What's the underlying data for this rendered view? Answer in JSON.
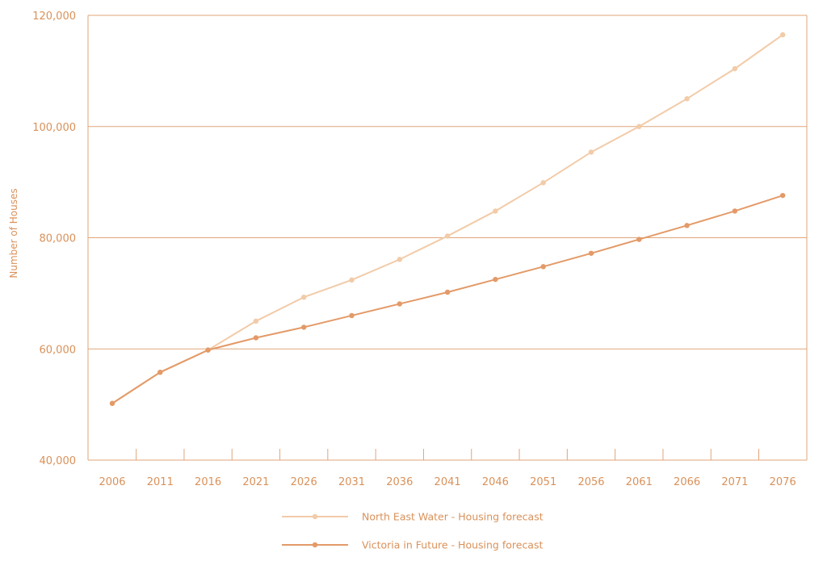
{
  "chart_data": {
    "type": "line",
    "title": "",
    "xlabel": "",
    "ylabel": "Number of Houses",
    "x": [
      "2006",
      "2011",
      "2016",
      "2021",
      "2026",
      "2031",
      "2036",
      "2041",
      "2046",
      "2051",
      "2056",
      "2061",
      "2066",
      "2071",
      "2076"
    ],
    "y_ticks": [
      "40,000",
      "60,000",
      "80,000",
      "100,000",
      "120,000"
    ],
    "ylim": [
      40000,
      120000
    ],
    "grid": "horizontal",
    "legend_position": "bottom-center",
    "series": [
      {
        "name": "North East Water - Housing forecast",
        "color": "#f2cba8",
        "values": [
          50200,
          55800,
          59800,
          65000,
          69300,
          72400,
          76100,
          80300,
          84800,
          89900,
          95400,
          100000,
          105000,
          110400,
          116500
        ]
      },
      {
        "name": "Victoria in Future - Housing forecast",
        "color": "#e39a68",
        "values": [
          50200,
          55800,
          59800,
          62000,
          63900,
          66000,
          68100,
          70200,
          72500,
          74800,
          77200,
          79700,
          82200,
          84800,
          87600
        ]
      }
    ],
    "colors": {
      "axis": "#e0a57a",
      "grid": "#e0a57a",
      "text": "#d9915a"
    }
  }
}
